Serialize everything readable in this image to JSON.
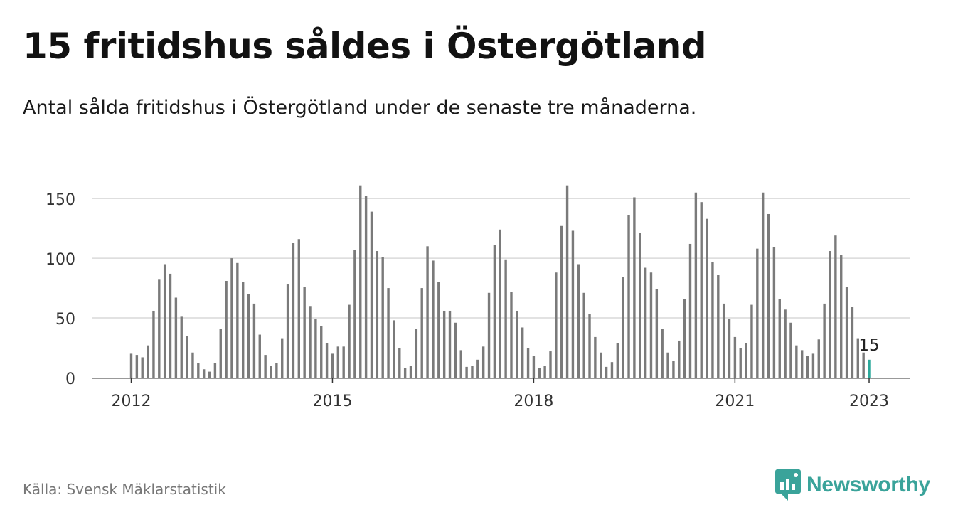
{
  "title": "15 fritidshus såldes i Östergötland",
  "subtitle": "Antal sålda fritidshus i Östergötland under de senaste tre månaderna.",
  "source": "Källa: Svensk Mäklarstatistik",
  "brand": "Newsworthy",
  "colors": {
    "bar": "#7a7a7a",
    "highlight": "#2aa89a",
    "grid": "#d9d9d9",
    "axis": "#333333",
    "brand": "#3aa39a"
  },
  "chart_data": {
    "type": "bar",
    "start": "2012-01",
    "values": [
      20,
      19,
      17,
      27,
      56,
      82,
      95,
      87,
      67,
      51,
      35,
      21,
      12,
      7,
      5,
      12,
      41,
      81,
      100,
      96,
      80,
      70,
      62,
      36,
      19,
      10,
      12,
      33,
      78,
      113,
      116,
      76,
      60,
      49,
      43,
      29,
      20,
      26,
      26,
      61,
      107,
      161,
      152,
      139,
      106,
      101,
      75,
      48,
      25,
      8,
      10,
      41,
      75,
      110,
      98,
      80,
      56,
      56,
      46,
      23,
      9,
      10,
      15,
      26,
      71,
      111,
      124,
      99,
      72,
      56,
      42,
      25,
      18,
      8,
      10,
      22,
      88,
      127,
      161,
      123,
      95,
      71,
      53,
      34,
      21,
      9,
      13,
      29,
      84,
      136,
      151,
      121,
      92,
      88,
      74,
      41,
      21,
      14,
      31,
      66,
      112,
      155,
      147,
      133,
      97,
      86,
      62,
      49,
      34,
      25,
      29,
      61,
      108,
      155,
      137,
      109,
      66,
      57,
      46,
      27,
      23,
      18,
      20,
      32,
      62,
      106,
      119,
      103,
      76,
      59,
      33,
      21,
      15
    ],
    "highlight_last": true,
    "last_label": "15",
    "yticks": [
      0,
      50,
      100,
      150
    ],
    "xticks": [
      "2012",
      "2015",
      "2018",
      "2021",
      "2023"
    ],
    "ylim": [
      0,
      162
    ],
    "xlabel": "",
    "ylabel": "",
    "grid": true
  }
}
